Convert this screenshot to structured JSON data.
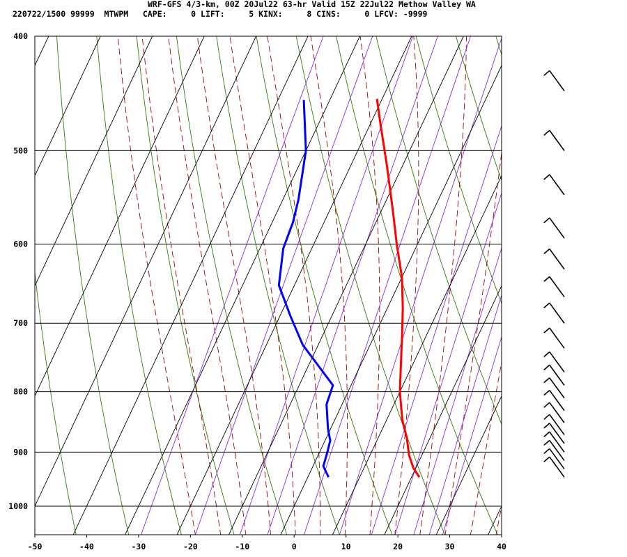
{
  "header": {
    "title": "WRF-GFS 4/3-km, 00Z 20Jul22 63-hr Valid 15Z 22Jul22 Methow Valley WA",
    "info": "220722/1500 99999  MTWPM   CAPE:     0 LIFT:     5 KINX:     8 CINS:     0 LFCV: -9999"
  },
  "colors": {
    "temperature": "#ff0000",
    "dewpoint": "#0000ff",
    "isotherm": "#000000",
    "dry_adiabat": "#2e7d00",
    "moist_adiabat": "#a00000",
    "mixing_ratio": "#8a2be2"
  },
  "chart_data": {
    "type": "line",
    "title": "",
    "xlabel": "",
    "ylabel": "",
    "x_ticks": [
      -50,
      -40,
      -30,
      -20,
      -10,
      0,
      10,
      20,
      30,
      40
    ],
    "y_ticks": [
      400,
      500,
      600,
      700,
      800,
      900,
      1000
    ],
    "xlim": [
      -50,
      40
    ],
    "ylim": [
      1040,
      400
    ],
    "y_scale": "log-pressure",
    "grid": true,
    "series": [
      {
        "key": "temperature",
        "points": [
          [
            21.5,
            945
          ],
          [
            19.5,
            928
          ],
          [
            17.5,
            905
          ],
          [
            15.5,
            875
          ],
          [
            13,
            845
          ],
          [
            10,
            800
          ],
          [
            7.8,
            760
          ],
          [
            5.5,
            720
          ],
          [
            3,
            680
          ],
          [
            0,
            640
          ],
          [
            -4,
            600
          ],
          [
            -8,
            560
          ],
          [
            -13,
            515
          ],
          [
            -18,
            475
          ],
          [
            -21,
            452
          ]
        ]
      },
      {
        "key": "dewpoint",
        "points": [
          [
            4,
            945
          ],
          [
            2,
            925
          ],
          [
            1.5,
            900
          ],
          [
            1,
            880
          ],
          [
            -0.5,
            860
          ],
          [
            -3,
            820
          ],
          [
            -3.5,
            790
          ],
          [
            -13,
            730
          ],
          [
            -18,
            690
          ],
          [
            -23,
            650
          ],
          [
            -25.5,
            605
          ],
          [
            -26,
            575
          ],
          [
            -27,
            550
          ],
          [
            -30,
            500
          ],
          [
            -35,
            453
          ]
        ]
      }
    ],
    "wind_barbs": [
      {
        "pressure": 445
      },
      {
        "pressure": 500
      },
      {
        "pressure": 545
      },
      {
        "pressure": 593
      },
      {
        "pressure": 630
      },
      {
        "pressure": 665
      },
      {
        "pressure": 700
      },
      {
        "pressure": 735
      },
      {
        "pressure": 770
      },
      {
        "pressure": 790
      },
      {
        "pressure": 810
      },
      {
        "pressure": 830
      },
      {
        "pressure": 850
      },
      {
        "pressure": 870
      },
      {
        "pressure": 885
      },
      {
        "pressure": 900
      },
      {
        "pressure": 915
      },
      {
        "pressure": 930
      },
      {
        "pressure": 945
      }
    ]
  }
}
